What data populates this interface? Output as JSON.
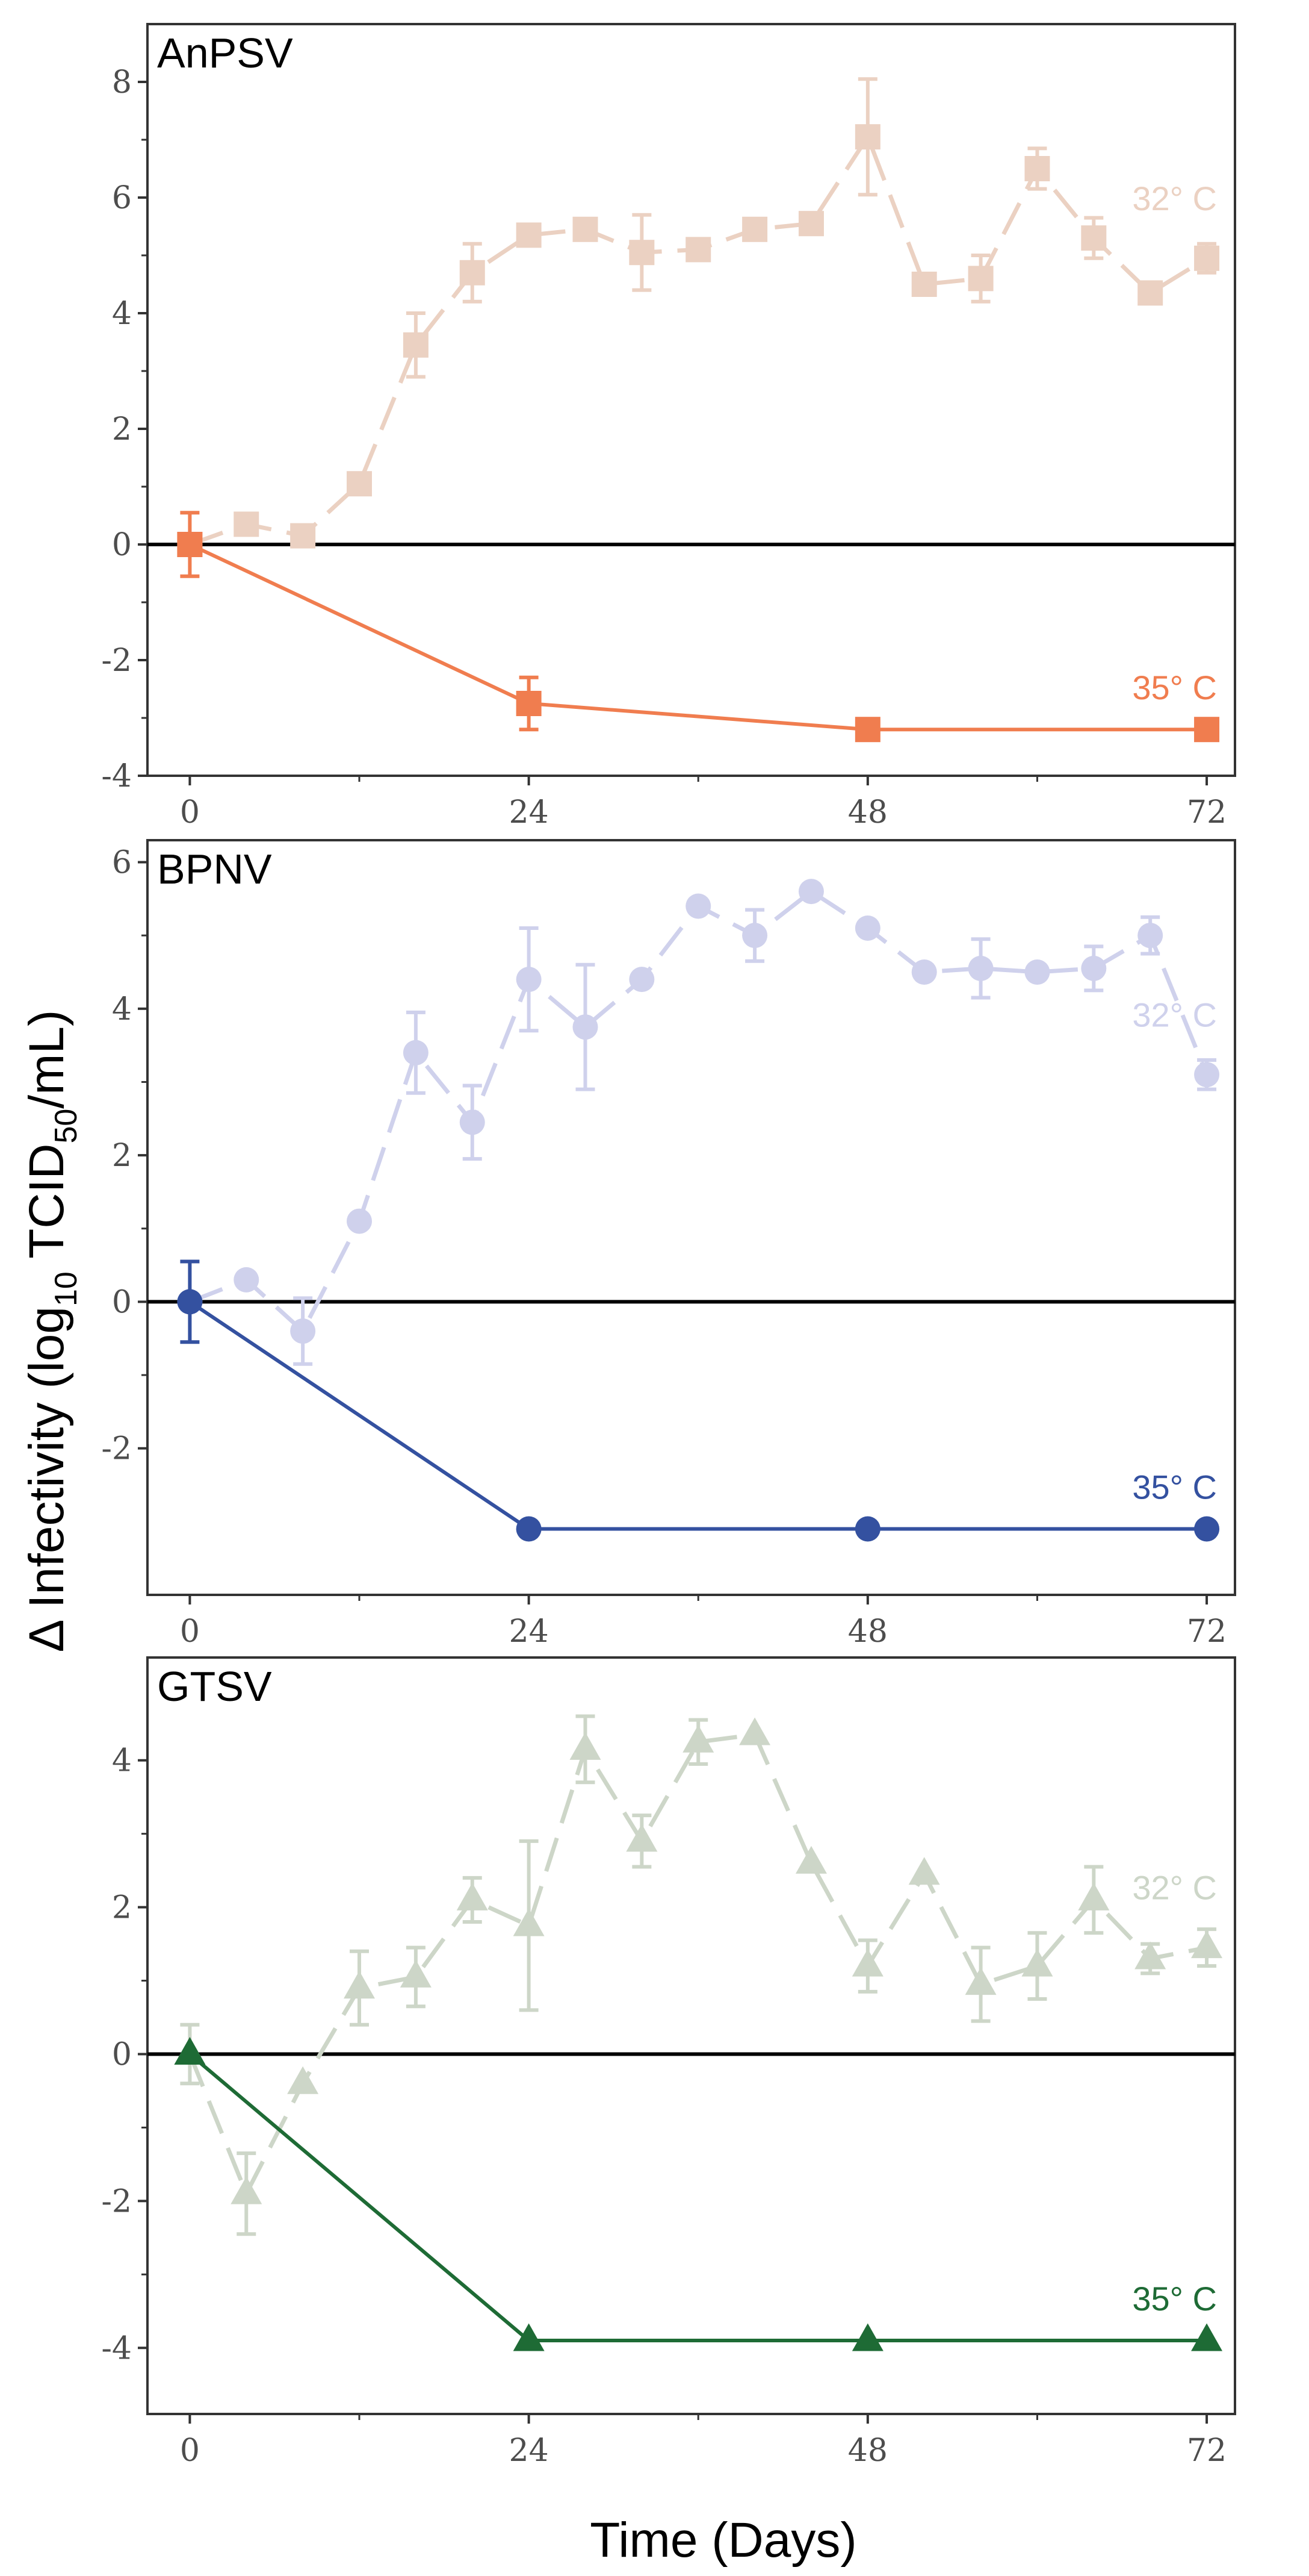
{
  "chart_data": [
    {
      "type": "line",
      "title": "AnPSV",
      "ylim": [
        -4,
        9
      ],
      "yticks": [
        -4,
        -2,
        0,
        2,
        4,
        6,
        8
      ],
      "xlim": [
        -3,
        74
      ],
      "xticks": [
        0,
        24,
        48,
        72
      ],
      "marker": "square",
      "series": [
        {
          "name": "32° C",
          "color": "#ebd1c2",
          "dashed": true,
          "x": [
            0,
            4,
            8,
            12,
            16,
            20,
            24,
            28,
            32,
            36,
            40,
            44,
            48,
            52,
            56,
            60,
            64,
            68,
            72
          ],
          "y": [
            0.0,
            0.35,
            0.15,
            1.05,
            3.45,
            4.7,
            5.35,
            5.45,
            5.05,
            5.1,
            5.45,
            5.55,
            7.05,
            4.5,
            4.6,
            6.5,
            5.3,
            4.35,
            4.95
          ],
          "err": [
            0.0,
            0.0,
            0.0,
            0.0,
            0.55,
            0.5,
            0.0,
            0.0,
            0.65,
            0.0,
            0.0,
            0.0,
            1.0,
            0.0,
            0.4,
            0.35,
            0.35,
            0.0,
            0.25
          ]
        },
        {
          "name": "35° C",
          "color": "#f07d4f",
          "dashed": false,
          "x": [
            0,
            24,
            48,
            72
          ],
          "y": [
            0.0,
            -2.75,
            -3.2,
            -3.2
          ],
          "err": [
            0.55,
            0.45,
            0.0,
            0.0
          ]
        }
      ]
    },
    {
      "type": "line",
      "title": "BPNV",
      "ylim": [
        -4,
        6.3
      ],
      "yticks": [
        -2,
        0,
        2,
        4,
        6
      ],
      "xlim": [
        -3,
        74
      ],
      "xticks": [
        0,
        24,
        48,
        72
      ],
      "marker": "circle",
      "series": [
        {
          "name": "32° C",
          "color": "#cfd1ec",
          "dashed": true,
          "x": [
            0,
            4,
            8,
            12,
            16,
            20,
            24,
            28,
            32,
            36,
            40,
            44,
            48,
            52,
            56,
            60,
            64,
            68,
            72
          ],
          "y": [
            0.0,
            0.3,
            -0.4,
            1.1,
            3.4,
            2.45,
            4.4,
            3.75,
            4.4,
            5.4,
            5.0,
            5.6,
            5.1,
            4.5,
            4.55,
            4.5,
            4.55,
            5.0,
            3.1
          ],
          "err": [
            0.0,
            0.0,
            0.45,
            0.0,
            0.55,
            0.5,
            0.7,
            0.85,
            0.0,
            0.0,
            0.35,
            0.0,
            0.0,
            0.0,
            0.4,
            0.0,
            0.3,
            0.25,
            0.2
          ]
        },
        {
          "name": "35° C",
          "color": "#3451a0",
          "dashed": false,
          "x": [
            0,
            24,
            48,
            72
          ],
          "y": [
            0.0,
            -3.1,
            -3.1,
            -3.1
          ],
          "err": [
            0.55,
            0.0,
            0.0,
            0.0
          ]
        }
      ]
    },
    {
      "type": "line",
      "title": "GTSV",
      "ylim": [
        -4.9,
        5.4
      ],
      "yticks": [
        -4,
        -2,
        0,
        2,
        4
      ],
      "xlim": [
        -3,
        74
      ],
      "xticks": [
        0,
        24,
        48,
        72
      ],
      "marker": "triangle",
      "series": [
        {
          "name": "32° C",
          "color": "#cdd6c8",
          "dashed": true,
          "x": [
            0,
            4,
            8,
            12,
            16,
            20,
            24,
            28,
            32,
            36,
            40,
            44,
            48,
            52,
            56,
            60,
            64,
            68,
            72
          ],
          "y": [
            0.0,
            -1.9,
            -0.4,
            0.9,
            1.05,
            2.1,
            1.75,
            4.15,
            2.9,
            4.25,
            4.35,
            2.6,
            1.2,
            2.45,
            0.95,
            1.2,
            2.1,
            1.3,
            1.45
          ],
          "err": [
            0.4,
            0.55,
            0.0,
            0.5,
            0.4,
            0.3,
            1.15,
            0.45,
            0.35,
            0.3,
            0.0,
            0.0,
            0.35,
            0.0,
            0.5,
            0.45,
            0.45,
            0.2,
            0.25
          ]
        },
        {
          "name": "35° C",
          "color": "#1e6b35",
          "dashed": false,
          "x": [
            0,
            24,
            48,
            72
          ],
          "y": [
            0.0,
            -3.9,
            -3.9,
            -3.9
          ],
          "err": [
            0.0,
            0.0,
            0.0,
            0.0
          ]
        }
      ]
    }
  ],
  "ylabel": {
    "prefix": "Δ Infectivity (log",
    "sub1": "10",
    "middle": " TCID",
    "sub2": "50",
    "suffix": "/mL)"
  },
  "xlabel": "Time (Days)"
}
